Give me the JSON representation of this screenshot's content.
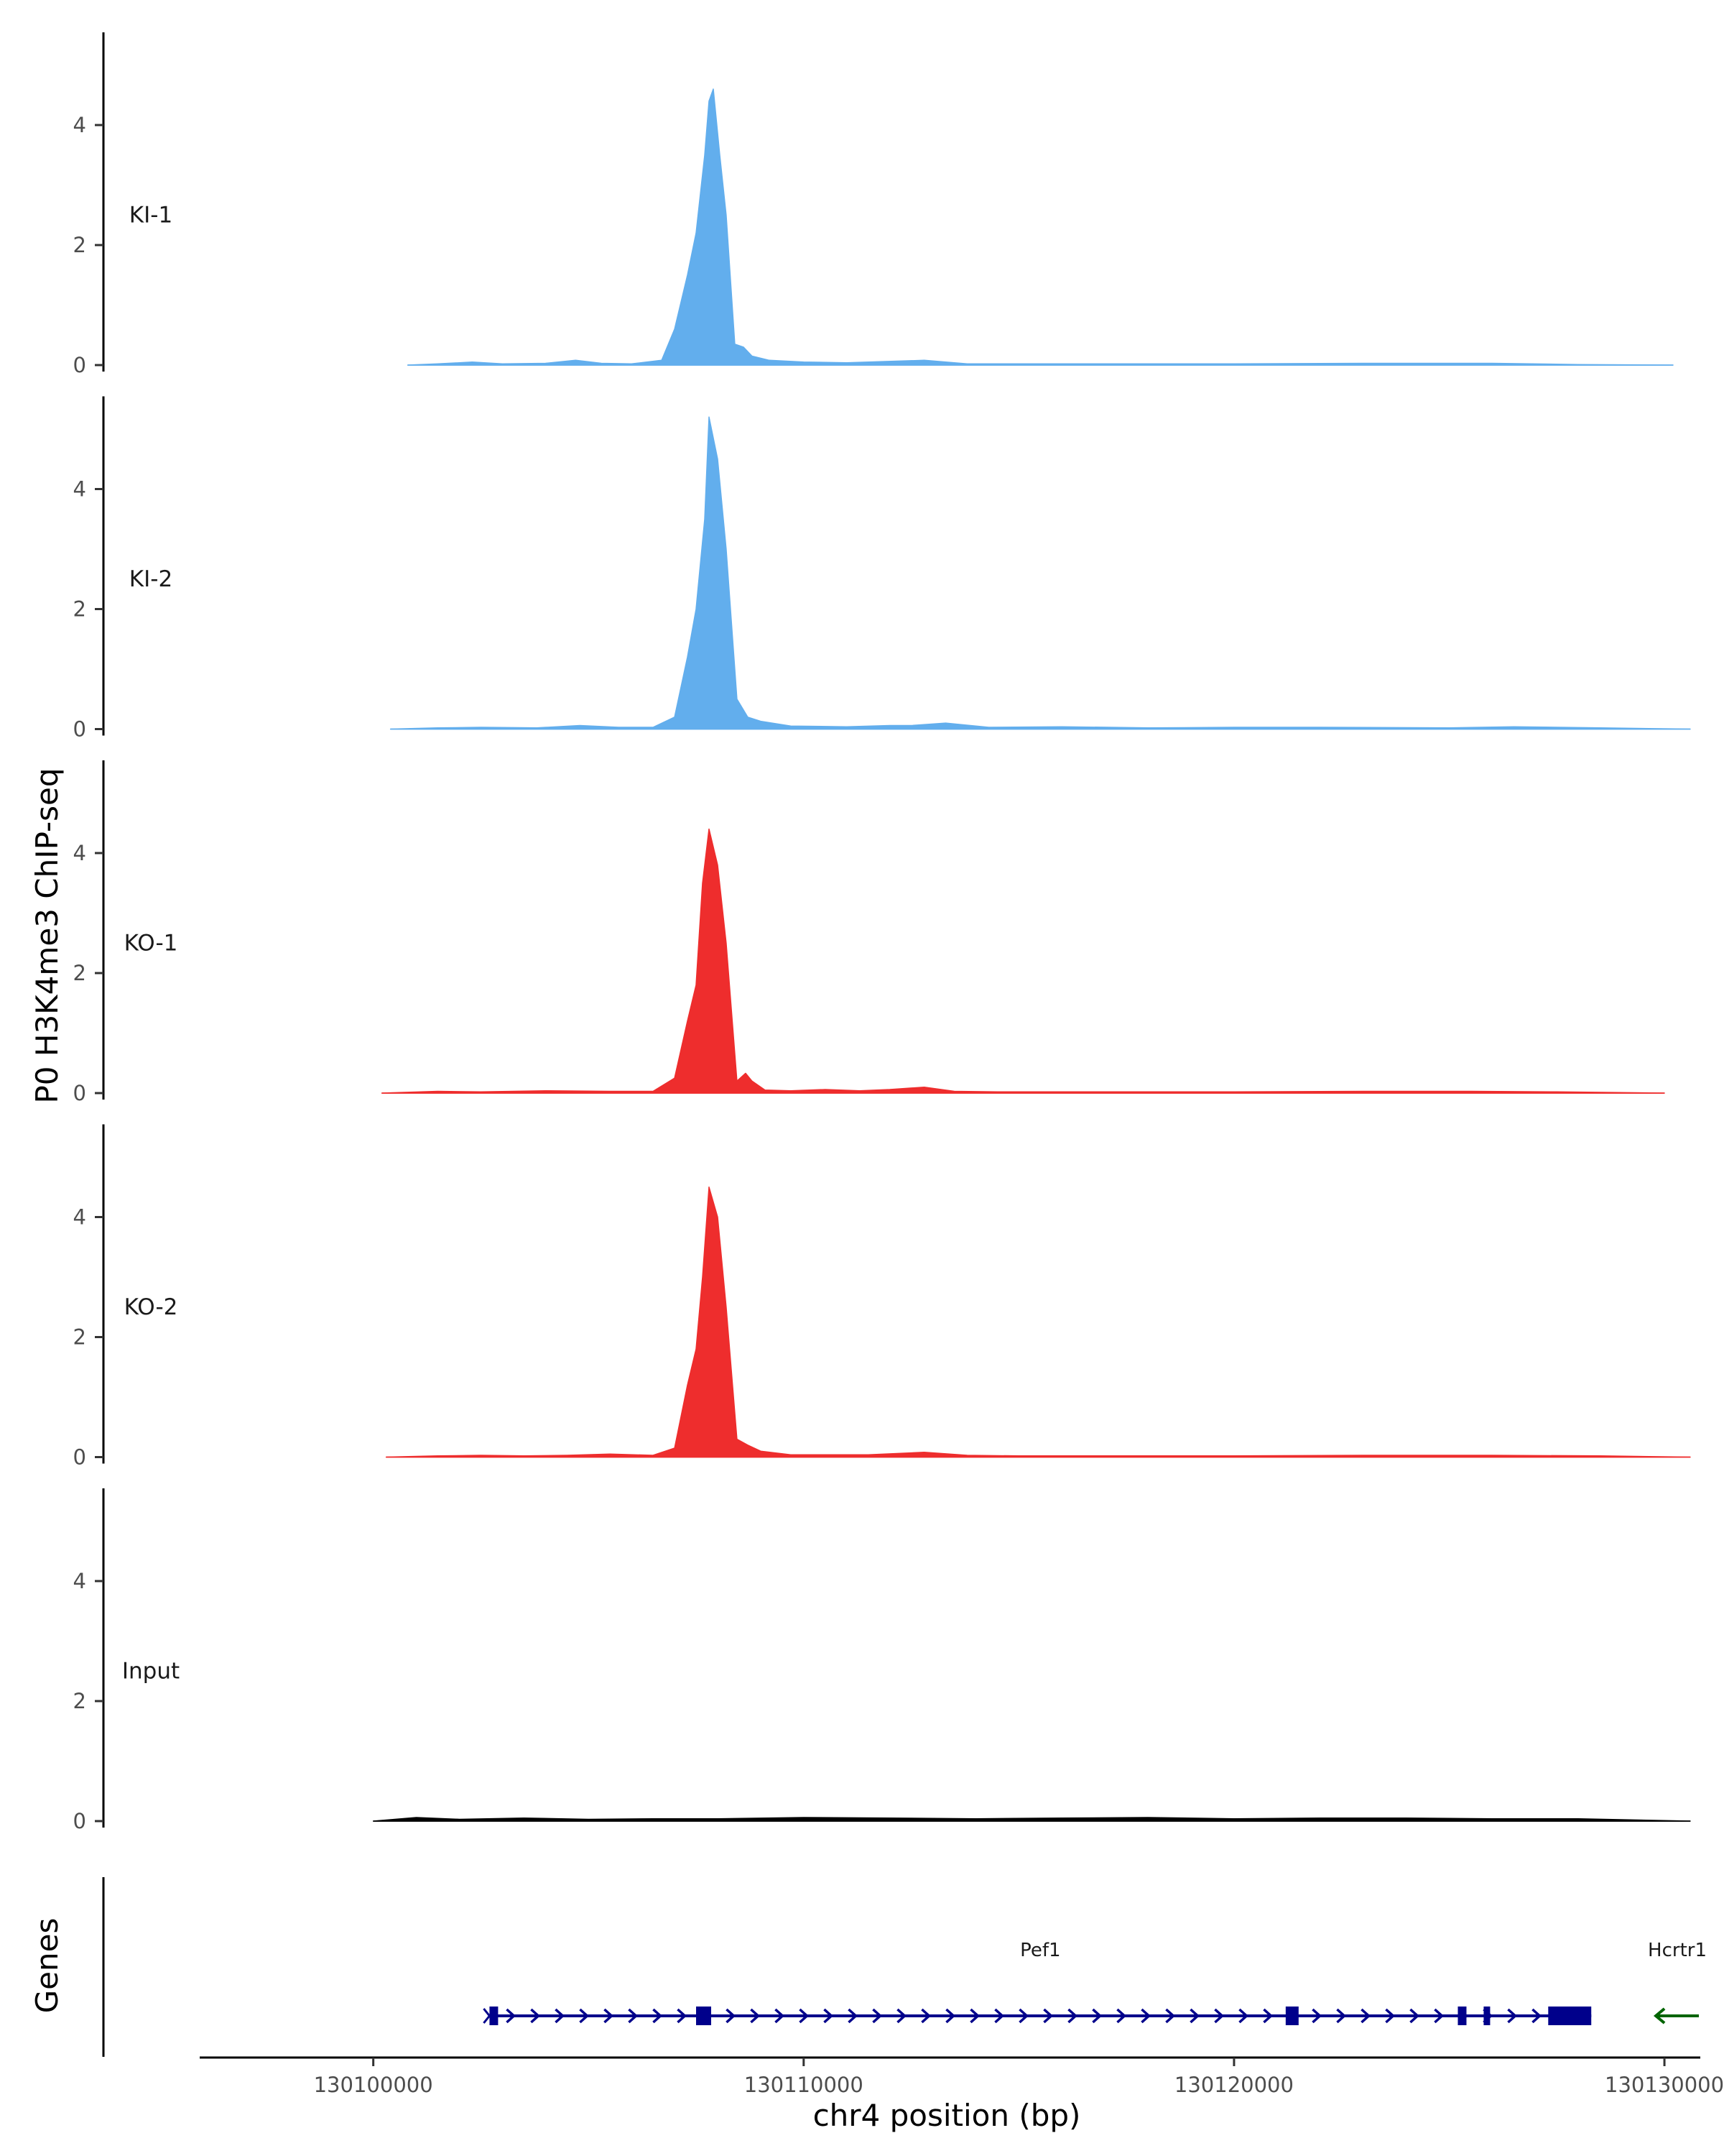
{
  "chart_data": {
    "type": "area",
    "title": "",
    "ylabel": "P0 H3K4me3 ChIP-seq",
    "xlabel": "chr4 position (bp)",
    "gene_panel_label": "Genes",
    "xlim": [
      130096000,
      130130800
    ],
    "ylim": [
      0,
      5.5
    ],
    "x_ticks": [
      130100000,
      130110000,
      130120000,
      130130000
    ],
    "x_tick_labels": [
      "130100000",
      "130110000",
      "130120000",
      "130130000"
    ],
    "y_ticks": [
      0,
      2,
      4
    ],
    "y_tick_labels": [
      "0",
      "2",
      "4"
    ],
    "tracks": [
      {
        "label": "KI-1",
        "color": "#62aeed",
        "x": [
          130100800,
          130101500,
          130102300,
          130103000,
          130104000,
          130104700,
          130105300,
          130106000,
          130106700,
          130107000,
          130107300,
          130107500,
          130107700,
          130107800,
          130107900,
          130108050,
          130108200,
          130108400,
          130108600,
          130108800,
          130109200,
          130110000,
          130111000,
          130112800,
          130113800,
          130115000,
          130117000,
          130120000,
          130123000,
          130126000,
          130128000,
          130130200
        ],
        "y": [
          0.0,
          0.02,
          0.05,
          0.02,
          0.03,
          0.08,
          0.03,
          0.02,
          0.08,
          0.6,
          1.5,
          2.2,
          3.5,
          4.4,
          4.6,
          3.5,
          2.5,
          0.35,
          0.3,
          0.15,
          0.08,
          0.05,
          0.04,
          0.08,
          0.02,
          0.02,
          0.02,
          0.02,
          0.03,
          0.03,
          0.01,
          0.0
        ]
      },
      {
        "label": "KI-2",
        "color": "#62aeed",
        "x": [
          130100400,
          130101500,
          130102500,
          130103800,
          130104800,
          130105700,
          130106500,
          130107000,
          130107300,
          130107500,
          130107700,
          130107800,
          130108000,
          130108200,
          130108450,
          130108700,
          130109000,
          130109700,
          130111000,
          130112000,
          130112500,
          130113300,
          130114300,
          130116000,
          130118000,
          130120000,
          130122000,
          130125000,
          130126500,
          130128500,
          130130600
        ],
        "y": [
          0.0,
          0.02,
          0.03,
          0.02,
          0.06,
          0.03,
          0.03,
          0.2,
          1.2,
          2.0,
          3.5,
          5.2,
          4.5,
          3.0,
          0.5,
          0.2,
          0.13,
          0.05,
          0.04,
          0.06,
          0.06,
          0.1,
          0.03,
          0.04,
          0.02,
          0.03,
          0.03,
          0.02,
          0.04,
          0.02,
          0.0
        ]
      },
      {
        "label": "KO-1",
        "color": "#ee2d2d",
        "x": [
          130100200,
          130101500,
          130102500,
          130104000,
          130105500,
          130106500,
          130107000,
          130107300,
          130107500,
          130107650,
          130107800,
          130108000,
          130108200,
          130108450,
          130108650,
          130108800,
          130109100,
          130109700,
          130110500,
          130111300,
          130112000,
          130112800,
          130113500,
          130114500,
          130116000,
          130118000,
          130120000,
          130123000,
          130125500,
          130127500,
          130130000
        ],
        "y": [
          0.0,
          0.03,
          0.02,
          0.04,
          0.03,
          0.03,
          0.25,
          1.2,
          1.8,
          3.5,
          4.4,
          3.8,
          2.5,
          0.2,
          0.33,
          0.2,
          0.05,
          0.04,
          0.06,
          0.04,
          0.06,
          0.1,
          0.03,
          0.02,
          0.02,
          0.02,
          0.02,
          0.03,
          0.03,
          0.02,
          0.0
        ]
      },
      {
        "label": "KO-2",
        "color": "#ee2d2d",
        "x": [
          130100300,
          130101500,
          130102500,
          130103500,
          130104500,
          130105500,
          130106500,
          130107000,
          130107300,
          130107500,
          130107650,
          130107800,
          130108000,
          130108200,
          130108450,
          130108700,
          130109000,
          130109700,
          130110500,
          130111500,
          130112800,
          130113800,
          130115000,
          130117000,
          130120000,
          130123000,
          130126000,
          130128500,
          130130600
        ],
        "y": [
          0.0,
          0.02,
          0.03,
          0.02,
          0.03,
          0.05,
          0.03,
          0.15,
          1.2,
          1.8,
          3.0,
          4.5,
          4.0,
          2.5,
          0.3,
          0.2,
          0.1,
          0.04,
          0.04,
          0.04,
          0.08,
          0.03,
          0.02,
          0.02,
          0.02,
          0.03,
          0.03,
          0.02,
          0.0
        ]
      },
      {
        "label": "Input",
        "color": "#000000",
        "x": [
          130100000,
          130101000,
          130102000,
          130103500,
          130105000,
          130106500,
          130108000,
          130110000,
          130112000,
          130114000,
          130116000,
          130118000,
          130120000,
          130122000,
          130124000,
          130126000,
          130128000,
          130130600
        ],
        "y": [
          0.0,
          0.06,
          0.03,
          0.05,
          0.03,
          0.04,
          0.04,
          0.06,
          0.05,
          0.04,
          0.05,
          0.06,
          0.04,
          0.05,
          0.05,
          0.04,
          0.04,
          0.0
        ]
      }
    ],
    "genes": [
      {
        "name": "Pef1",
        "strand": "+",
        "color": "#00008b",
        "start": 130102700,
        "end": 130128300,
        "exons": [
          [
            130102700,
            130102900
          ],
          [
            130107500,
            130107850
          ],
          [
            130121200,
            130121500
          ],
          [
            130125200,
            130125400
          ],
          [
            130125800,
            130125950
          ],
          [
            130127300,
            130128300
          ]
        ]
      },
      {
        "name": "Hcrtr1",
        "strand": "-",
        "color": "#006400",
        "start": 130129800,
        "end": 130130800,
        "exons": []
      }
    ]
  }
}
